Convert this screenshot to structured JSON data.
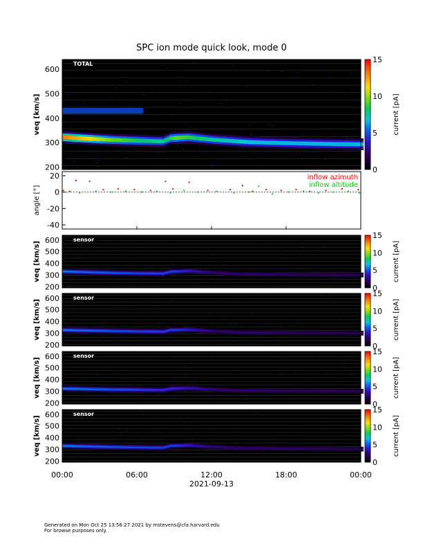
{
  "title": "SPC ion mode quick look, mode 0",
  "footer": {
    "line1": "Generated on Mon Oct 25 13:56:27 2021 by mstevens@cfa.harvard.edu",
    "line2": "For browse purposes only."
  },
  "chart_data": [
    {
      "type": "heatmap",
      "panel": "total",
      "panel_label": "TOTAL",
      "ylabel": "v_eq [km/s]",
      "ylim": [
        190,
        640
      ],
      "yticks": [
        200,
        300,
        400,
        500,
        600
      ],
      "xticks": [
        0,
        6,
        12,
        18,
        24
      ],
      "xticklabels": [
        "00:00",
        "06:00",
        "12:00",
        "18:00",
        "00:00"
      ],
      "xlabel": "2021-09-13",
      "colorbar": {
        "label": "current [pA]",
        "range": [
          0,
          15
        ],
        "ticks": [
          0,
          5,
          10,
          15
        ]
      },
      "beam_center_kms": [
        {
          "hour": 0,
          "v": 322
        },
        {
          "hour": 2,
          "v": 316
        },
        {
          "hour": 4,
          "v": 311
        },
        {
          "hour": 6,
          "v": 308
        },
        {
          "hour": 8,
          "v": 305
        },
        {
          "hour": 8.6,
          "v": 318
        },
        {
          "hour": 10,
          "v": 322
        },
        {
          "hour": 12,
          "v": 312
        },
        {
          "hour": 15,
          "v": 302
        },
        {
          "hour": 18,
          "v": 298
        },
        {
          "hour": 21,
          "v": 295
        },
        {
          "hour": 24,
          "v": 293
        }
      ],
      "peak_current_pA": [
        {
          "hour": 0,
          "i": 14
        },
        {
          "hour": 2,
          "i": 12
        },
        {
          "hour": 4,
          "i": 10
        },
        {
          "hour": 6,
          "i": 9
        },
        {
          "hour": 8,
          "i": 8
        },
        {
          "hour": 9,
          "i": 10
        },
        {
          "hour": 12,
          "i": 8
        },
        {
          "hour": 16,
          "i": 7
        },
        {
          "hour": 20,
          "i": 7
        },
        {
          "hour": 24,
          "i": 7
        }
      ],
      "beam_width_kms": 22,
      "secondary_band": {
        "hours": [
          0,
          6.5
        ],
        "v": 430,
        "i": 5
      }
    },
    {
      "type": "scatter",
      "panel": "angle",
      "ylabel": "angle [°]",
      "ylim": [
        -45,
        25
      ],
      "yticks": [
        -40,
        -20,
        0,
        20
      ],
      "series": [
        {
          "name": "inflow azimuth",
          "color": "#ff0000",
          "points": [
            [
              0.1,
              2
            ],
            [
              0.6,
              1
            ],
            [
              1.1,
              14
            ],
            [
              2.2,
              13
            ],
            [
              3.3,
              3
            ],
            [
              4.5,
              4
            ],
            [
              5.8,
              3
            ],
            [
              7.1,
              2
            ],
            [
              8.3,
              13
            ],
            [
              8.9,
              4
            ],
            [
              10.2,
              12
            ],
            [
              11.7,
              2
            ],
            [
              13.5,
              3
            ],
            [
              14.5,
              8
            ],
            [
              15.3,
              1
            ],
            [
              16.4,
              3
            ],
            [
              17.6,
              2
            ],
            [
              18.8,
              3
            ],
            [
              19.9,
              1
            ],
            [
              21.2,
              2
            ],
            [
              22.5,
              4
            ],
            [
              23.8,
              3
            ]
          ]
        },
        {
          "name": "inflow altitude",
          "color": "#00cc00",
          "points": [
            [
              0.3,
              0
            ],
            [
              1.4,
              -1
            ],
            [
              2.7,
              1
            ],
            [
              3.9,
              0
            ],
            [
              5.1,
              1
            ],
            [
              6.4,
              0
            ],
            [
              7.6,
              1
            ],
            [
              8.7,
              -1
            ],
            [
              9.8,
              2
            ],
            [
              10.9,
              0
            ],
            [
              12.4,
              1
            ],
            [
              13.8,
              -1
            ],
            [
              15.0,
              0
            ],
            [
              15.8,
              7
            ],
            [
              16.9,
              -2
            ],
            [
              18.2,
              0
            ],
            [
              19.4,
              1
            ],
            [
              20.6,
              -1
            ],
            [
              21.8,
              0
            ],
            [
              23.0,
              1
            ],
            [
              23.9,
              -1
            ]
          ]
        }
      ]
    },
    {
      "type": "heatmap",
      "panel": "sensor1",
      "panel_label": "sensor",
      "ylabel": "v_eq [km/s]",
      "ylim": [
        190,
        640
      ],
      "yticks": [
        200,
        300,
        400,
        500,
        600
      ],
      "colorbar": {
        "label": "current [pA]",
        "range": [
          0,
          15
        ],
        "ticks": [
          0,
          5,
          10,
          15
        ]
      },
      "beam_center_kms": [
        {
          "hour": 0,
          "v": 330
        },
        {
          "hour": 4,
          "v": 318
        },
        {
          "hour": 8,
          "v": 312
        },
        {
          "hour": 8.6,
          "v": 328
        },
        {
          "hour": 10,
          "v": 334
        },
        {
          "hour": 14,
          "v": 308
        },
        {
          "hour": 24,
          "v": 300
        }
      ],
      "peak_current_pA": [
        {
          "hour": 0,
          "i": 6
        },
        {
          "hour": 6,
          "i": 5
        },
        {
          "hour": 9,
          "i": 5
        },
        {
          "hour": 12,
          "i": 2.5
        },
        {
          "hour": 24,
          "i": 2
        }
      ],
      "beam_width_kms": 24
    },
    {
      "type": "heatmap",
      "panel": "sensor2",
      "panel_label": "sensor",
      "ylabel": "v_eq [km/s]",
      "ylim": [
        190,
        640
      ],
      "yticks": [
        200,
        300,
        400,
        500,
        600
      ],
      "colorbar": {
        "label": "current [pA]",
        "range": [
          0,
          15
        ],
        "ticks": [
          0,
          5,
          10,
          15
        ]
      },
      "beam_center_kms": [
        {
          "hour": 0,
          "v": 326
        },
        {
          "hour": 4,
          "v": 318
        },
        {
          "hour": 8,
          "v": 312
        },
        {
          "hour": 8.6,
          "v": 326
        },
        {
          "hour": 10,
          "v": 330
        },
        {
          "hour": 14,
          "v": 306
        },
        {
          "hour": 24,
          "v": 300
        }
      ],
      "peak_current_pA": [
        {
          "hour": 0,
          "i": 6
        },
        {
          "hour": 6,
          "i": 5
        },
        {
          "hour": 9,
          "i": 5
        },
        {
          "hour": 12,
          "i": 2.5
        },
        {
          "hour": 24,
          "i": 2
        }
      ],
      "beam_width_kms": 24
    },
    {
      "type": "heatmap",
      "panel": "sensor3",
      "panel_label": "sensor",
      "ylabel": "v_eq [km/s]",
      "ylim": [
        190,
        640
      ],
      "yticks": [
        200,
        300,
        400,
        500,
        600
      ],
      "colorbar": {
        "label": "current [pA]",
        "range": [
          0,
          15
        ],
        "ticks": [
          0,
          5,
          10,
          15
        ]
      },
      "beam_center_kms": [
        {
          "hour": 0,
          "v": 322
        },
        {
          "hour": 4,
          "v": 315
        },
        {
          "hour": 8,
          "v": 310
        },
        {
          "hour": 8.6,
          "v": 322
        },
        {
          "hour": 10,
          "v": 326
        },
        {
          "hour": 14,
          "v": 306
        },
        {
          "hour": 24,
          "v": 300
        }
      ],
      "peak_current_pA": [
        {
          "hour": 0,
          "i": 6
        },
        {
          "hour": 6,
          "i": 5
        },
        {
          "hour": 9,
          "i": 4.5
        },
        {
          "hour": 12,
          "i": 2.5
        },
        {
          "hour": 24,
          "i": 2
        }
      ],
      "beam_width_kms": 24
    },
    {
      "type": "heatmap",
      "panel": "sensor4",
      "panel_label": "sensor",
      "ylabel": "v_eq [km/s]",
      "ylim": [
        190,
        640
      ],
      "yticks": [
        200,
        300,
        400,
        500,
        600
      ],
      "colorbar": {
        "label": "current [pA]",
        "range": [
          0,
          15
        ],
        "ticks": [
          0,
          5,
          10,
          15
        ]
      },
      "beam_center_kms": [
        {
          "hour": 0,
          "v": 330
        },
        {
          "hour": 4,
          "v": 320
        },
        {
          "hour": 8,
          "v": 314
        },
        {
          "hour": 8.6,
          "v": 330
        },
        {
          "hour": 10,
          "v": 334
        },
        {
          "hour": 14,
          "v": 310
        },
        {
          "hour": 24,
          "v": 302
        }
      ],
      "peak_current_pA": [
        {
          "hour": 0,
          "i": 6
        },
        {
          "hour": 6,
          "i": 5
        },
        {
          "hour": 9,
          "i": 5
        },
        {
          "hour": 12,
          "i": 2.5
        },
        {
          "hour": 24,
          "i": 2
        }
      ],
      "beam_width_kms": 24
    }
  ]
}
